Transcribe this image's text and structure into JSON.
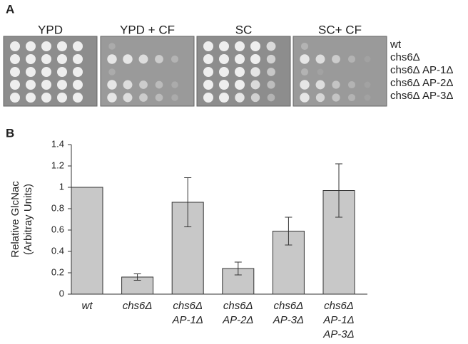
{
  "panel_a": {
    "label": "A",
    "plates": [
      "YPD",
      "YPD + CF",
      "SC",
      "SC+ CF"
    ],
    "rows": [
      "wt",
      "chs6Δ",
      "chs6Δ AP-1Δ",
      "chs6Δ AP-2Δ",
      "chs6Δ AP-3Δ"
    ]
  },
  "chart_data": {
    "type": "bar",
    "label": "B",
    "ylabel": [
      "Relative GlcNac",
      "(Arbitray Units)"
    ],
    "categories": [
      [
        "wt"
      ],
      [
        "chs6Δ"
      ],
      [
        "chs6Δ",
        "AP-1Δ"
      ],
      [
        "chs6Δ",
        "AP-2Δ"
      ],
      [
        "chs6Δ",
        "AP-3Δ"
      ],
      [
        "chs6Δ",
        "AP-1Δ",
        "AP-3Δ"
      ]
    ],
    "values": [
      1.0,
      0.16,
      0.86,
      0.24,
      0.59,
      0.97
    ],
    "errors": [
      null,
      0.03,
      0.23,
      0.06,
      0.13,
      0.25
    ],
    "color": "#c8c8c8",
    "ylim": [
      0,
      1.4
    ],
    "yticks": [
      0,
      0.2,
      0.4,
      0.6,
      0.8,
      1,
      1.2,
      1.4
    ]
  }
}
